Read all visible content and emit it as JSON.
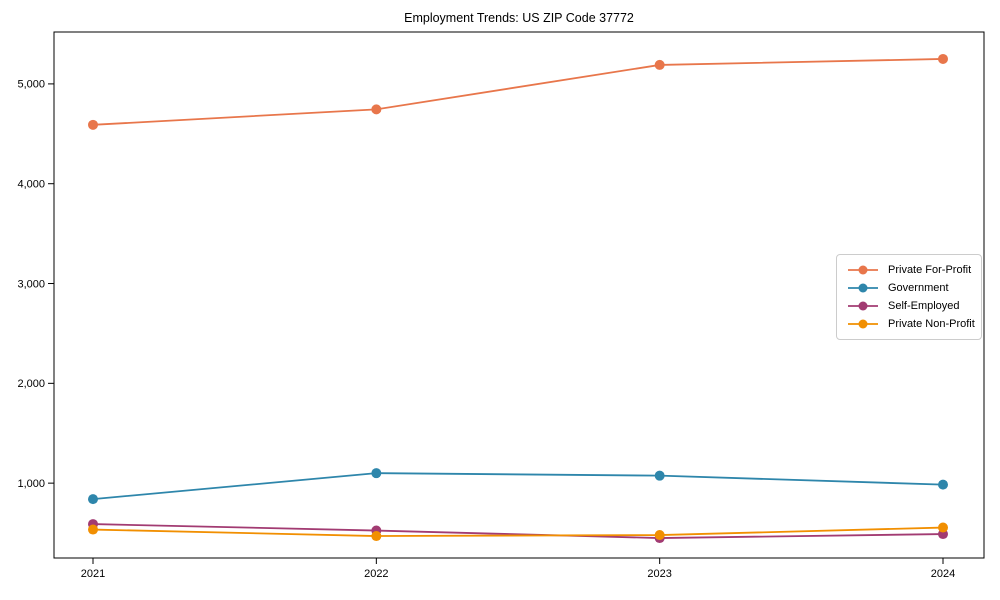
{
  "chart_data": {
    "type": "line",
    "title": "Employment Trends: US ZIP Code 37772",
    "xlabel": "",
    "ylabel": "",
    "categories": [
      "2021",
      "2022",
      "2023",
      "2024"
    ],
    "series": [
      {
        "name": "Private For-Profit",
        "color": "#E8764B",
        "values": [
          4590,
          4745,
          5190,
          5250
        ]
      },
      {
        "name": "Government",
        "color": "#2E86AB",
        "values": [
          840,
          1100,
          1075,
          985
        ]
      },
      {
        "name": "Self-Employed",
        "color": "#A23B72",
        "values": [
          590,
          525,
          450,
          490
        ]
      },
      {
        "name": "Private Non-Profit",
        "color": "#F18F01",
        "values": [
          535,
          470,
          480,
          555
        ]
      }
    ],
    "y_ticks": [
      {
        "value": 1000,
        "label": "1,000"
      },
      {
        "value": 2000,
        "label": "2,000"
      },
      {
        "value": 3000,
        "label": "3,000"
      },
      {
        "value": 4000,
        "label": "4,000"
      },
      {
        "value": 5000,
        "label": "5,000"
      }
    ],
    "ylim": [
      250,
      5520
    ],
    "grid": false,
    "legend_position": "center right",
    "marker": "circle",
    "axis_color": "#000000"
  }
}
